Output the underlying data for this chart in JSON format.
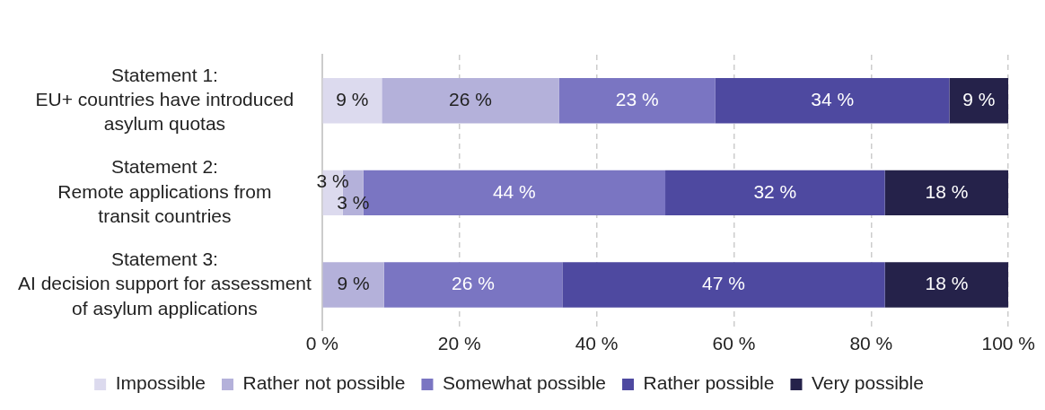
{
  "chart_data": {
    "type": "bar",
    "orientation": "horizontal",
    "stacked": true,
    "categories": [
      "Statement 1:\nEU+ countries have introduced\nasylum quotas",
      "Statement 2:\nRemote applications from\ntransit countries",
      "Statement 3:\nAI decision support for assessment\nof asylum applications"
    ],
    "series": [
      {
        "name": "Impossible",
        "color": "#dcdaee",
        "values": [
          8.7,
          3,
          null
        ],
        "value_labels": [
          "9 %",
          "3 %",
          null
        ]
      },
      {
        "name": "Rather not possible",
        "color": "#b4b1da",
        "values": [
          25.8,
          3,
          9
        ],
        "value_labels": [
          "26 %",
          "3 %",
          "9 %"
        ]
      },
      {
        "name": "Somewhat possible",
        "color": "#7a75c2",
        "values": [
          22.8,
          44,
          26
        ],
        "value_labels": [
          "23 %",
          "44 %",
          "26 %"
        ]
      },
      {
        "name": "Rather possible",
        "color": "#4e49a0",
        "values": [
          34.1,
          32,
          47
        ],
        "value_labels": [
          "34 %",
          "32 %",
          "47 %"
        ]
      },
      {
        "name": "Very possible",
        "color": "#25224a",
        "values": [
          8.6,
          18,
          18
        ],
        "value_labels": [
          "9 %",
          "18 %",
          "18 %"
        ]
      }
    ],
    "xlim": [
      0,
      100
    ],
    "xticks": [
      {
        "value": 0,
        "label": "0 %"
      },
      {
        "value": 20,
        "label": "20 %"
      },
      {
        "value": 40,
        "label": "40 %"
      },
      {
        "value": 60,
        "label": "60 %"
      },
      {
        "value": 80,
        "label": "80 %"
      },
      {
        "value": 100,
        "label": "100 %"
      }
    ],
    "grid": "x",
    "legend": "bottom"
  }
}
